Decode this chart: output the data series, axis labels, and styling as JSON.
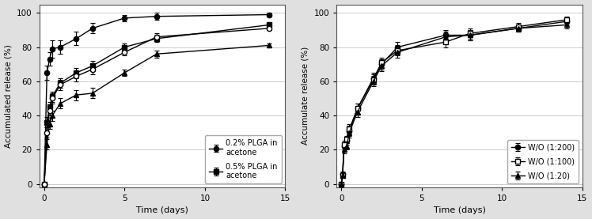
{
  "left": {
    "xlabel": "Time (days)",
    "ylabel": "Accumulated release (%)",
    "xlim": [
      -0.3,
      15
    ],
    "ylim": [
      -2,
      105
    ],
    "yticks": [
      0,
      20,
      40,
      60,
      80,
      100
    ],
    "xticks": [
      0,
      5,
      10,
      15
    ],
    "series": [
      {
        "label": "0.2% PLGA in\nacetone",
        "marker": "o",
        "fillstyle": "full",
        "x": [
          0,
          0.17,
          0.33,
          0.5,
          1,
          2,
          3,
          5,
          7,
          14
        ],
        "y": [
          0,
          65,
          73,
          79,
          80,
          85,
          91,
          97,
          98,
          99
        ],
        "yerr": [
          0,
          4,
          4,
          5,
          4,
          4,
          3,
          2,
          2,
          1
        ]
      },
      {
        "label": "0.5% PLGA in\nacetone",
        "marker": "s",
        "fillstyle": "full",
        "x": [
          0,
          0.17,
          0.33,
          0.5,
          1,
          2,
          3,
          5,
          7,
          14
        ],
        "y": [
          0,
          36,
          45,
          51,
          59,
          65,
          69,
          80,
          85,
          93
        ],
        "yerr": [
          0,
          3,
          3,
          3,
          3,
          3,
          3,
          2,
          2,
          1
        ]
      },
      {
        "label": null,
        "marker": "^",
        "fillstyle": "full",
        "x": [
          0,
          0.17,
          0.33,
          0.5,
          1,
          2,
          3,
          5,
          7,
          14
        ],
        "y": [
          0,
          23,
          35,
          40,
          47,
          52,
          53,
          65,
          76,
          81
        ],
        "yerr": [
          0,
          3,
          3,
          3,
          3,
          3,
          3,
          2,
          2,
          1
        ]
      },
      {
        "label": null,
        "marker": "o",
        "fillstyle": "none",
        "x": [
          0,
          0.17,
          0.33,
          0.5,
          1,
          2,
          3,
          5,
          7,
          14
        ],
        "y": [
          0,
          30,
          43,
          50,
          58,
          63,
          67,
          77,
          86,
          91
        ],
        "yerr": [
          0,
          3,
          3,
          3,
          3,
          3,
          3,
          2,
          2,
          1
        ]
      }
    ]
  },
  "right": {
    "xlabel": "Time (days)",
    "ylabel": "Accumulate release (%)",
    "xlim": [
      -0.3,
      15
    ],
    "ylim": [
      -2,
      105
    ],
    "yticks": [
      0,
      20,
      40,
      60,
      80,
      100
    ],
    "xticks": [
      0,
      5,
      10,
      15
    ],
    "series": [
      {
        "label": "W/O (1:200)",
        "marker": "o",
        "fillstyle": "full",
        "x": [
          0,
          0.08,
          0.17,
          0.33,
          0.5,
          1,
          2,
          2.5,
          3.5,
          6.5,
          8,
          11,
          14
        ],
        "y": [
          0,
          6,
          22,
          25,
          31,
          44,
          62,
          70,
          80,
          87,
          87,
          91,
          95
        ],
        "yerr": [
          0,
          1,
          2,
          2,
          3,
          3,
          3,
          3,
          3,
          3,
          3,
          2,
          2
        ]
      },
      {
        "label": "W/O (1:100)",
        "marker": "s",
        "fillstyle": "none",
        "x": [
          0,
          0.08,
          0.17,
          0.33,
          0.5,
          1,
          2,
          2.5,
          3.5,
          6.5,
          8,
          11,
          14
        ],
        "y": [
          0,
          5,
          23,
          26,
          32,
          44,
          61,
          71,
          78,
          83,
          88,
          92,
          96
        ],
        "yerr": [
          0,
          1,
          2,
          2,
          3,
          3,
          3,
          3,
          3,
          3,
          3,
          2,
          2
        ]
      },
      {
        "label": "W/O (1:20)",
        "marker": "^",
        "fillstyle": "full",
        "x": [
          0,
          0.08,
          0.17,
          0.33,
          0.5,
          1,
          2,
          2.5,
          3.5,
          6.5,
          8,
          11,
          14
        ],
        "y": [
          0,
          5,
          20,
          22,
          30,
          42,
          60,
          69,
          77,
          86,
          87,
          91,
          93
        ],
        "yerr": [
          0,
          1,
          2,
          2,
          3,
          3,
          3,
          3,
          3,
          3,
          3,
          2,
          2
        ]
      }
    ]
  },
  "color": "#000000",
  "markersize": 4.5,
  "linewidth": 1.0,
  "elinewidth": 0.8,
  "capsize": 2,
  "grid_color": "#cccccc",
  "bg_color": "#ffffff",
  "fig_bg": "#e0e0e0"
}
